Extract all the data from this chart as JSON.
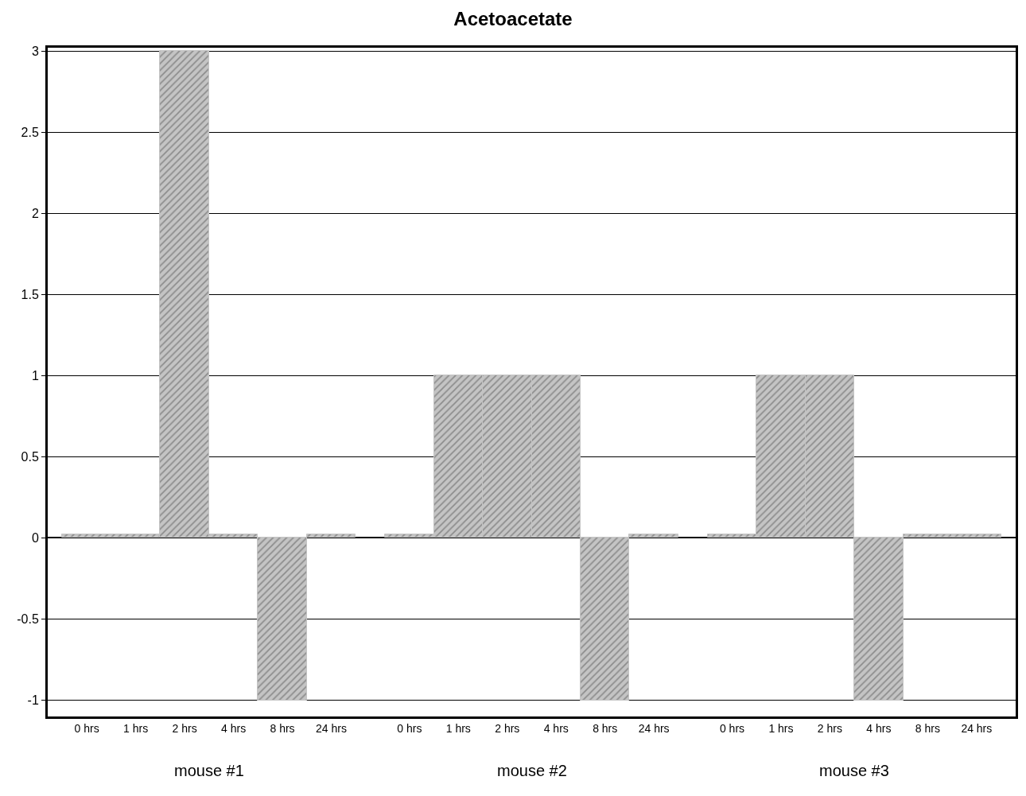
{
  "chart_data": {
    "type": "bar",
    "title": "Acetoacetate",
    "categories": [
      "0 hrs",
      "1 hrs",
      "2 hrs",
      "4 hrs",
      "8 hrs",
      "24 hrs",
      "0 hrs",
      "1 hrs",
      "2 hrs",
      "4 hrs",
      "8 hrs",
      "24 hrs",
      "0 hrs",
      "1 hrs",
      "2 hrs",
      "4 hrs",
      "8 hrs",
      "24 hrs"
    ],
    "values": [
      0.02,
      0.02,
      3,
      0.02,
      -1,
      0.02,
      0.02,
      1,
      1,
      1,
      -1,
      0.02,
      0.02,
      1,
      1,
      -1,
      0.02,
      0.02
    ],
    "color": "#c4c4c4",
    "ylim": [
      -1.1,
      3.02
    ],
    "yticks": [
      {
        "value": -1,
        "label": "-1"
      },
      {
        "value": -0.5,
        "label": "-0.5"
      },
      0,
      0.5,
      1,
      1.5,
      2,
      2.5,
      3
    ],
    "grid": "y",
    "legend": false,
    "annotations": [
      "mouse #1",
      "mouse #2",
      "mouse #3"
    ]
  }
}
